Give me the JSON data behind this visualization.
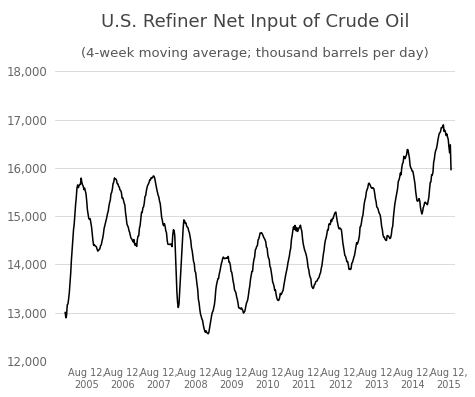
{
  "title": "U.S. Refiner Net Input of Crude Oil",
  "subtitle": "(4-week moving average; thousand barrels per day)",
  "title_fontsize": 13,
  "subtitle_fontsize": 9.5,
  "ylabel_fontsize": 8.5,
  "xlabel_fontsize": 7,
  "line_color": "#000000",
  "line_width": 1.1,
  "background_color": "#ffffff",
  "ylim": [
    12000,
    18000
  ],
  "yticks": [
    12000,
    13000,
    14000,
    15000,
    16000,
    17000,
    18000
  ],
  "ytick_labels": [
    "12,000",
    "13,000",
    "14,000",
    "15,000",
    "16,000",
    "17,000",
    "18,000"
  ],
  "grid_color": "#cccccc",
  "tick_color": "#888888",
  "text_color": "#666666"
}
